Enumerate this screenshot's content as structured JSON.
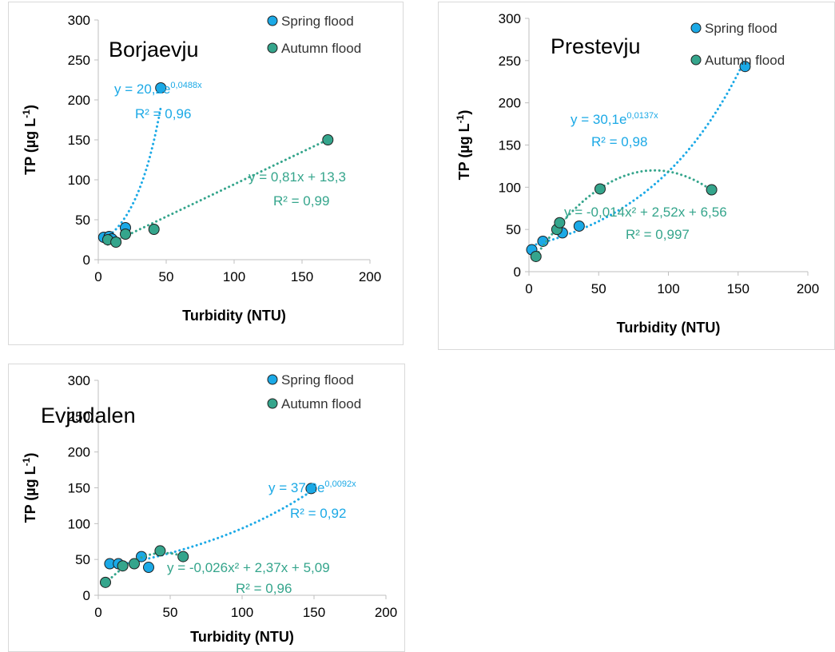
{
  "colors": {
    "spring": "#1ba9e6",
    "autumn": "#35a58c",
    "axis": "#bfbfbf",
    "text": "#000000"
  },
  "legend": {
    "spring": "Spring flood",
    "autumn": "Autumn flood"
  },
  "chart_data": [
    {
      "type": "scatter",
      "title": "Borjaevju",
      "xlabel": "Turbidity (NTU)",
      "ylabel_main": "TP (µg L",
      "ylabel_sup": "-1",
      "ylabel_close": ")",
      "xlim": [
        0,
        200
      ],
      "ylim": [
        0,
        300
      ],
      "xticks": [
        "0",
        "50",
        "100",
        "150",
        "200"
      ],
      "yticks": [
        "0",
        "50",
        "100",
        "150",
        "200",
        "250",
        "300"
      ],
      "legend_position": "top-right",
      "series": [
        {
          "name": "Spring flood",
          "color_key": "spring",
          "points": [
            [
              4,
              28
            ],
            [
              8,
              29
            ],
            [
              20,
              40
            ],
            [
              46,
              215
            ],
            [
              10,
              26
            ]
          ],
          "trend": {
            "type": "exponential",
            "a": 20.2,
            "b": 0.0488,
            "x_from": 3,
            "x_to": 46
          },
          "equation": {
            "main": "y = 20,2e",
            "sup": "0,0488x",
            "r2": "R² = 0,96"
          }
        },
        {
          "name": "Autumn flood",
          "color_key": "autumn",
          "points": [
            [
              7,
              25
            ],
            [
              13,
              22
            ],
            [
              20,
              32
            ],
            [
              41,
              38
            ],
            [
              169,
              150
            ]
          ],
          "trend": {
            "type": "linear",
            "a": 0.81,
            "b": 13.3,
            "x_from": 7,
            "x_to": 169
          },
          "equation": {
            "main": "y = 0,81x + 13,3",
            "sup": "",
            "r2": "R² = 0,99"
          }
        }
      ]
    },
    {
      "type": "scatter",
      "title": "Prestevju",
      "xlabel": "Turbidity (NTU)",
      "ylabel_main": "TP (µg L",
      "ylabel_sup": "-1",
      "ylabel_close": ")",
      "xlim": [
        0,
        200
      ],
      "ylim": [
        0,
        300
      ],
      "xticks": [
        "0",
        "50",
        "100",
        "150",
        "200"
      ],
      "yticks": [
        "0",
        "50",
        "100",
        "150",
        "200",
        "250",
        "300"
      ],
      "legend_position": "top-right",
      "series": [
        {
          "name": "Spring flood",
          "color_key": "spring",
          "points": [
            [
              2,
              26
            ],
            [
              10,
              36
            ],
            [
              24,
              46
            ],
            [
              36,
              54
            ],
            [
              155,
              243
            ]
          ],
          "trend": {
            "type": "exponential",
            "a": 30.1,
            "b": 0.0137,
            "x_from": 2,
            "x_to": 155
          },
          "equation": {
            "main": "y = 30,1e",
            "sup": "0,0137x",
            "r2": "R² = 0,98"
          }
        },
        {
          "name": "Autumn flood",
          "color_key": "autumn",
          "points": [
            [
              5,
              18
            ],
            [
              20,
              50
            ],
            [
              22,
              58
            ],
            [
              51,
              98
            ],
            [
              131,
              97
            ]
          ],
          "trend": {
            "type": "polynomial",
            "a": -0.014,
            "b": 2.52,
            "c": 6.56,
            "x_from": 5,
            "x_to": 131
          },
          "equation": {
            "main": "y = -0,014x² + 2,52x + 6,56",
            "sup": "",
            "r2": "R² = 0,997"
          }
        }
      ]
    },
    {
      "type": "scatter",
      "title": "Evjudalen",
      "xlabel": "Turbidity (NTU)",
      "ylabel_main": "TP (µg L",
      "ylabel_sup": "-1",
      "ylabel_close": ")",
      "xlim": [
        0,
        200
      ],
      "ylim": [
        0,
        300
      ],
      "xticks": [
        "0",
        "50",
        "100",
        "150",
        "200"
      ],
      "yticks": [
        "0",
        "50",
        "100",
        "150",
        "200",
        "250",
        "300"
      ],
      "legend_position": "top-right",
      "series": [
        {
          "name": "Spring flood",
          "color_key": "spring",
          "points": [
            [
              8,
              44
            ],
            [
              14,
              44
            ],
            [
              30,
              54
            ],
            [
              35,
              39
            ],
            [
              148,
              149
            ]
          ],
          "trend": {
            "type": "exponential",
            "a": 37.2,
            "b": 0.0092,
            "x_from": 8,
            "x_to": 148
          },
          "equation": {
            "main": "y = 37,2e",
            "sup": "0,0092x",
            "r2": "R² = 0,92"
          }
        },
        {
          "name": "Autumn flood",
          "color_key": "autumn",
          "points": [
            [
              5,
              18
            ],
            [
              17,
              41
            ],
            [
              25,
              44
            ],
            [
              43,
              62
            ],
            [
              59,
              54
            ]
          ],
          "trend": {
            "type": "polynomial",
            "a": -0.026,
            "b": 2.37,
            "c": 5.09,
            "x_from": 5,
            "x_to": 59
          },
          "equation": {
            "main": "y = -0,026x² + 2,37x + 5,09",
            "sup": "",
            "r2": "R² = 0,96"
          }
        }
      ]
    }
  ]
}
